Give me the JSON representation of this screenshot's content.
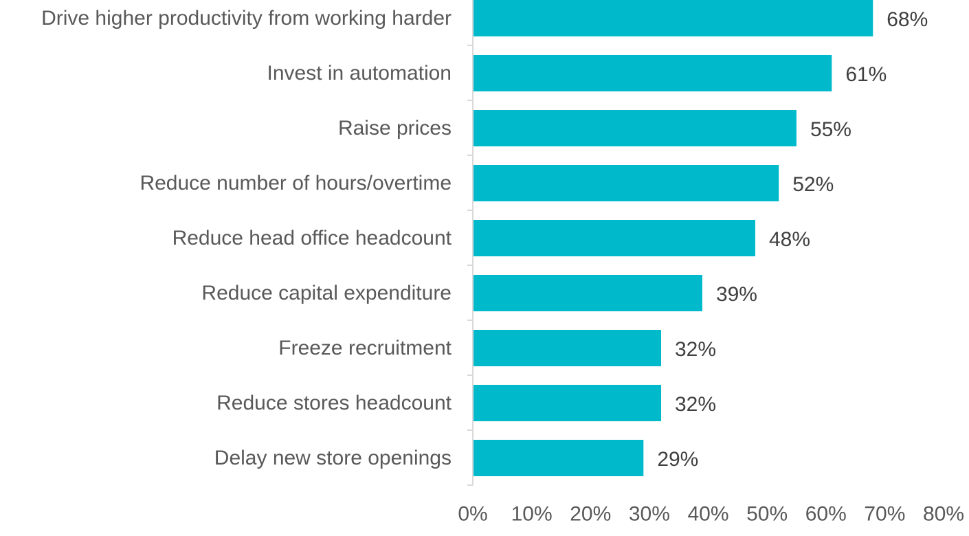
{
  "chart_data": {
    "type": "bar",
    "orientation": "horizontal",
    "categories": [
      "Drive higher productivity from working harder",
      "Invest in automation",
      "Raise prices",
      "Reduce number of hours/overtime",
      "Reduce head office headcount",
      "Reduce capital expenditure",
      "Freeze recruitment",
      "Reduce stores headcount",
      "Delay new store openings"
    ],
    "values": [
      68,
      61,
      55,
      52,
      48,
      39,
      32,
      32,
      29
    ],
    "value_labels": [
      "68%",
      "61%",
      "55%",
      "52%",
      "48%",
      "39%",
      "32%",
      "32%",
      "29%"
    ],
    "x_ticks": [
      "0%",
      "10%",
      "20%",
      "30%",
      "40%",
      "50%",
      "60%",
      "70%",
      "80%"
    ],
    "xlim": [
      0,
      80
    ],
    "title": "",
    "xlabel": "",
    "ylabel": "",
    "grid": false,
    "legend": "none",
    "bar_color": "#00BACC"
  }
}
